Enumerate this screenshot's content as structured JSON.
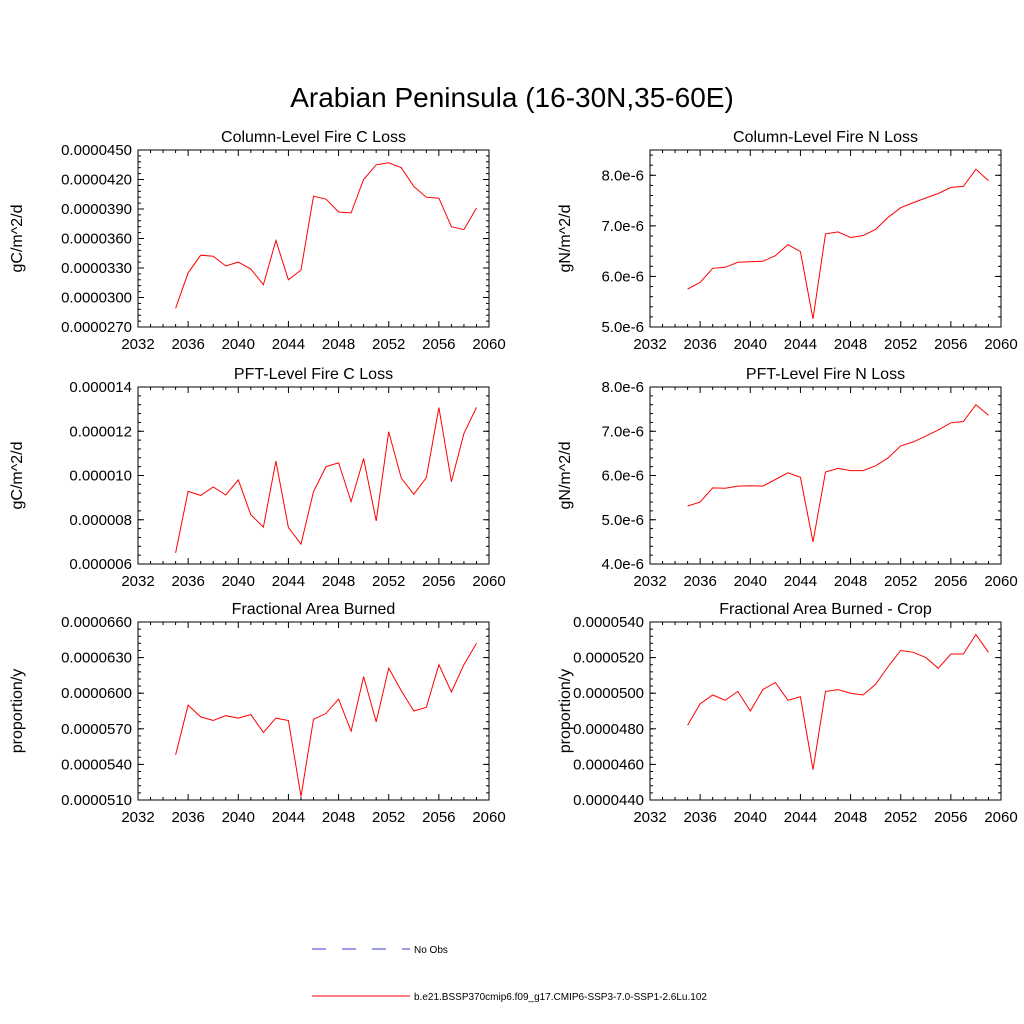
{
  "figure": {
    "title": "Arabian Peninsula (16-30N,35-60E)",
    "legend": [
      {
        "label": "No Obs",
        "style": "dashed",
        "color": "#3b3bd6"
      },
      {
        "label": "b.e21.BSSP370cmip6.f09_g17.CMIP6-SSP3-7.0-SSP1-2.6Lu.102",
        "style": "solid",
        "color": "#ff0000"
      }
    ]
  },
  "chart_data": [
    {
      "type": "line",
      "title": "Column-Level Fire C Loss",
      "ylabel": "gC/m^2/d",
      "xlim": [
        2032,
        2060
      ],
      "ylim": [
        2.7e-05,
        4.5e-05
      ],
      "xticks": [
        "2032",
        "2036",
        "2040",
        "2044",
        "2048",
        "2052",
        "2056",
        "2060"
      ],
      "yticks": [
        "0.0000270",
        "0.0000300",
        "0.0000330",
        "0.0000360",
        "0.0000390",
        "0.0000420",
        "0.0000450"
      ],
      "ytick_values": [
        2.7e-05,
        3e-05,
        3.3e-05,
        3.6e-05,
        3.9e-05,
        4.2e-05,
        4.5e-05
      ],
      "color": "#ff0000",
      "x": [
        2035,
        2036,
        2037,
        2038,
        2039,
        2040,
        2041,
        2042,
        2043,
        2044,
        2045,
        2046,
        2047,
        2048,
        2049,
        2050,
        2051,
        2052,
        2053,
        2054,
        2055,
        2056,
        2057,
        2058,
        2059
      ],
      "values": [
        2.89e-05,
        3.25e-05,
        3.43e-05,
        3.42e-05,
        3.32e-05,
        3.36e-05,
        3.29e-05,
        3.13e-05,
        3.58e-05,
        3.18e-05,
        3.28e-05,
        4.03e-05,
        4e-05,
        3.87e-05,
        3.86e-05,
        4.2e-05,
        4.35e-05,
        4.37e-05,
        4.32e-05,
        4.13e-05,
        4.02e-05,
        4.01e-05,
        3.72e-05,
        3.69e-05,
        3.91e-05
      ]
    },
    {
      "type": "line",
      "title": "Column-Level Fire N Loss",
      "ylabel": "gN/m^2/d",
      "xlim": [
        2032,
        2060
      ],
      "ylim": [
        5e-06,
        8.5e-06
      ],
      "xticks": [
        "2032",
        "2036",
        "2040",
        "2044",
        "2048",
        "2052",
        "2056",
        "2060"
      ],
      "yticks": [
        "5.0e-6",
        "6.0e-6",
        "7.0e-6",
        "8.0e-6"
      ],
      "ytick_values": [
        5e-06,
        6e-06,
        7e-06,
        8e-06
      ],
      "color": "#ff0000",
      "x": [
        2035,
        2036,
        2037,
        2038,
        2039,
        2040,
        2041,
        2042,
        2043,
        2044,
        2045,
        2046,
        2047,
        2048,
        2049,
        2050,
        2051,
        2052,
        2053,
        2054,
        2055,
        2056,
        2057,
        2058,
        2059
      ],
      "values": [
        5.75e-06,
        5.88e-06,
        6.16e-06,
        6.18e-06,
        6.28e-06,
        6.29e-06,
        6.3e-06,
        6.41e-06,
        6.63e-06,
        6.49e-06,
        5.16e-06,
        6.84e-06,
        6.88e-06,
        6.77e-06,
        6.81e-06,
        6.93e-06,
        7.17e-06,
        7.36e-06,
        7.46e-06,
        7.55e-06,
        7.64e-06,
        7.76e-06,
        7.78e-06,
        8.12e-06,
        7.89e-06
      ]
    },
    {
      "type": "line",
      "title": "PFT-Level Fire C Loss",
      "ylabel": "gC/m^2/d",
      "xlim": [
        2032,
        2060
      ],
      "ylim": [
        6e-06,
        1.4e-05
      ],
      "xticks": [
        "2032",
        "2036",
        "2040",
        "2044",
        "2048",
        "2052",
        "2056",
        "2060"
      ],
      "yticks": [
        "0.000006",
        "0.000008",
        "0.000010",
        "0.000012",
        "0.000014"
      ],
      "ytick_values": [
        6e-06,
        8e-06,
        1e-05,
        1.2e-05,
        1.4e-05
      ],
      "color": "#ff0000",
      "x": [
        2035,
        2036,
        2037,
        2038,
        2039,
        2040,
        2041,
        2042,
        2043,
        2044,
        2045,
        2046,
        2047,
        2048,
        2049,
        2050,
        2051,
        2052,
        2053,
        2054,
        2055,
        2056,
        2057,
        2058,
        2059
      ],
      "values": [
        6.5e-06,
        9.28e-06,
        9.1e-06,
        9.48e-06,
        9.12e-06,
        9.8e-06,
        8.23e-06,
        7.67e-06,
        1.065e-05,
        7.65e-06,
        6.9e-06,
        9.27e-06,
        1.04e-05,
        1.057e-05,
        8.82e-06,
        1.077e-05,
        7.95e-06,
        1.198e-05,
        9.88e-06,
        9.15e-06,
        9.9e-06,
        1.307e-05,
        9.72e-06,
        1.19e-05,
        1.308e-05
      ]
    },
    {
      "type": "line",
      "title": "PFT-Level Fire N Loss",
      "ylabel": "gN/m^2/d",
      "xlim": [
        2032,
        2060
      ],
      "ylim": [
        4e-06,
        8e-06
      ],
      "xticks": [
        "2032",
        "2036",
        "2040",
        "2044",
        "2048",
        "2052",
        "2056",
        "2060"
      ],
      "yticks": [
        "4.0e-6",
        "5.0e-6",
        "6.0e-6",
        "7.0e-6",
        "8.0e-6"
      ],
      "ytick_values": [
        4e-06,
        5e-06,
        6e-06,
        7e-06,
        8e-06
      ],
      "color": "#ff0000",
      "x": [
        2035,
        2036,
        2037,
        2038,
        2039,
        2040,
        2041,
        2042,
        2043,
        2044,
        2045,
        2046,
        2047,
        2048,
        2049,
        2050,
        2051,
        2052,
        2053,
        2054,
        2055,
        2056,
        2057,
        2058,
        2059
      ],
      "values": [
        5.31e-06,
        5.4e-06,
        5.72e-06,
        5.71e-06,
        5.76e-06,
        5.77e-06,
        5.76e-06,
        5.91e-06,
        6.06e-06,
        5.96e-06,
        4.5e-06,
        6.08e-06,
        6.16e-06,
        6.11e-06,
        6.11e-06,
        6.22e-06,
        6.4e-06,
        6.67e-06,
        6.76e-06,
        6.89e-06,
        7.03e-06,
        7.19e-06,
        7.22e-06,
        7.6e-06,
        7.36e-06
      ]
    },
    {
      "type": "line",
      "title": "Fractional Area Burned",
      "ylabel": "proportion/y",
      "xlim": [
        2032,
        2060
      ],
      "ylim": [
        5.1e-05,
        6.6e-05
      ],
      "xticks": [
        "2032",
        "2036",
        "2040",
        "2044",
        "2048",
        "2052",
        "2056",
        "2060"
      ],
      "yticks": [
        "0.0000510",
        "0.0000540",
        "0.0000570",
        "0.0000600",
        "0.0000630",
        "0.0000660"
      ],
      "ytick_values": [
        5.1e-05,
        5.4e-05,
        5.7e-05,
        6e-05,
        6.3e-05,
        6.6e-05
      ],
      "color": "#ff0000",
      "x": [
        2035,
        2036,
        2037,
        2038,
        2039,
        2040,
        2041,
        2042,
        2043,
        2044,
        2045,
        2046,
        2047,
        2048,
        2049,
        2050,
        2051,
        2052,
        2053,
        2054,
        2055,
        2056,
        2057,
        2058,
        2059
      ],
      "values": [
        5.48e-05,
        5.9e-05,
        5.8e-05,
        5.77e-05,
        5.81e-05,
        5.79e-05,
        5.82e-05,
        5.67e-05,
        5.79e-05,
        5.77e-05,
        5.13e-05,
        5.78e-05,
        5.83e-05,
        5.95e-05,
        5.68e-05,
        6.14e-05,
        5.76e-05,
        6.21e-05,
        6.02e-05,
        5.85e-05,
        5.88e-05,
        6.24e-05,
        6.01e-05,
        6.24e-05,
        6.42e-05
      ]
    },
    {
      "type": "line",
      "title": "Fractional Area Burned - Crop",
      "ylabel": "proportion/y",
      "xlim": [
        2032,
        2060
      ],
      "ylim": [
        4.4e-05,
        5.4e-05
      ],
      "xticks": [
        "2032",
        "2036",
        "2040",
        "2044",
        "2048",
        "2052",
        "2056",
        "2060"
      ],
      "yticks": [
        "0.0000440",
        "0.0000460",
        "0.0000480",
        "0.0000500",
        "0.0000520",
        "0.0000540"
      ],
      "ytick_values": [
        4.4e-05,
        4.6e-05,
        4.8e-05,
        5e-05,
        5.2e-05,
        5.4e-05
      ],
      "color": "#ff0000",
      "x": [
        2035,
        2036,
        2037,
        2038,
        2039,
        2040,
        2041,
        2042,
        2043,
        2044,
        2045,
        2046,
        2047,
        2048,
        2049,
        2050,
        2051,
        2052,
        2053,
        2054,
        2055,
        2056,
        2057,
        2058,
        2059
      ],
      "values": [
        4.82e-05,
        4.94e-05,
        4.99e-05,
        4.96e-05,
        5.01e-05,
        4.9e-05,
        5.02e-05,
        5.06e-05,
        4.96e-05,
        4.98e-05,
        4.57e-05,
        5.01e-05,
        5.02e-05,
        5e-05,
        4.99e-05,
        5.05e-05,
        5.15e-05,
        5.24e-05,
        5.23e-05,
        5.2e-05,
        5.14e-05,
        5.22e-05,
        5.22e-05,
        5.33e-05,
        5.23e-05
      ]
    }
  ]
}
